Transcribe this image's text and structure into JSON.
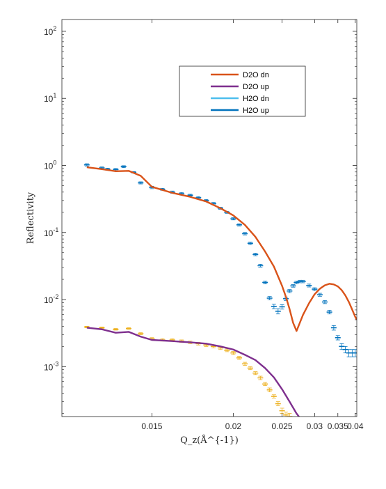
{
  "chart_data": {
    "type": "line",
    "xlabel": "Q_z(Å^{-1})",
    "ylabel": "Reflectivity",
    "x_scale": "reciprocal",
    "y_scale": "log",
    "xlim": [
      0.01175,
      0.0405
    ],
    "ylim": [
      0.00018,
      150
    ],
    "grid": false,
    "legend_position": "upper-center",
    "x_ticks": [
      {
        "value": 0.015,
        "label": "0.015"
      },
      {
        "value": 0.02,
        "label": "0.02"
      },
      {
        "value": 0.025,
        "label": "0.025"
      },
      {
        "value": 0.03,
        "label": "0.03"
      },
      {
        "value": 0.035,
        "label": "0.035"
      },
      {
        "value": 0.04,
        "label": "0.04"
      }
    ],
    "y_ticks": [
      {
        "value": 0.001,
        "base": "10",
        "exp": "-3"
      },
      {
        "value": 0.01,
        "base": "10",
        "exp": "-2"
      },
      {
        "value": 0.1,
        "base": "10",
        "exp": "-1"
      },
      {
        "value": 1,
        "base": "10",
        "exp": "0"
      },
      {
        "value": 10,
        "base": "10",
        "exp": "1"
      },
      {
        "value": 100,
        "base": "10",
        "exp": "2"
      }
    ],
    "series": [
      {
        "name": "D2O dn",
        "style": "line",
        "color": "#D95319",
        "x": [
          0.0125,
          0.013,
          0.0135,
          0.014,
          0.0145,
          0.015,
          0.016,
          0.017,
          0.018,
          0.019,
          0.02,
          0.021,
          0.022,
          0.023,
          0.024,
          0.025,
          0.0255,
          0.026,
          0.0265,
          0.027,
          0.0275,
          0.028,
          0.029,
          0.03,
          0.031,
          0.032,
          0.033,
          0.034,
          0.035,
          0.036,
          0.037,
          0.038,
          0.039,
          0.04,
          0.0405
        ],
        "y": [
          0.94,
          0.88,
          0.82,
          0.83,
          0.7,
          0.48,
          0.39,
          0.34,
          0.29,
          0.23,
          0.18,
          0.13,
          0.086,
          0.052,
          0.031,
          0.016,
          0.011,
          0.0072,
          0.0045,
          0.0034,
          0.0045,
          0.0059,
          0.0088,
          0.012,
          0.0145,
          0.0163,
          0.0172,
          0.0168,
          0.0157,
          0.0138,
          0.0115,
          0.0092,
          0.0071,
          0.0055,
          0.005
        ]
      },
      {
        "name": "D2O up",
        "style": "line",
        "color": "#7E2F8E",
        "x": [
          0.0125,
          0.013,
          0.0135,
          0.014,
          0.0145,
          0.015,
          0.016,
          0.017,
          0.018,
          0.019,
          0.02,
          0.021,
          0.022,
          0.023,
          0.024,
          0.025,
          0.026,
          0.027,
          0.028
        ],
        "y": [
          0.0038,
          0.0036,
          0.0032,
          0.0033,
          0.0028,
          0.0025,
          0.0024,
          0.0023,
          0.0022,
          0.002,
          0.0018,
          0.0015,
          0.00125,
          0.00095,
          0.00069,
          0.00046,
          0.0003,
          0.0002,
          0.00015
        ]
      },
      {
        "name": "H2O dn",
        "style": "errorbar",
        "color": "#4DBEEE",
        "x": [],
        "y": []
      },
      {
        "name": "H2O up",
        "style": "errorbar",
        "color": "#0072BD",
        "x": [
          0.0125,
          0.013,
          0.0132,
          0.0135,
          0.0138,
          0.0142,
          0.0145,
          0.015,
          0.0155,
          0.016,
          0.0165,
          0.017,
          0.0175,
          0.018,
          0.0185,
          0.019,
          0.0195,
          0.02,
          0.0205,
          0.021,
          0.0215,
          0.022,
          0.0225,
          0.023,
          0.0235,
          0.024,
          0.0245,
          0.025,
          0.0255,
          0.026,
          0.0265,
          0.027,
          0.0275,
          0.028,
          0.029,
          0.03,
          0.031,
          0.032,
          0.033,
          0.034,
          0.035,
          0.036,
          0.037,
          0.038,
          0.039,
          0.04
        ],
        "y": [
          1.02,
          0.92,
          0.88,
          0.87,
          0.96,
          0.79,
          0.55,
          0.47,
          0.44,
          0.4,
          0.38,
          0.36,
          0.33,
          0.3,
          0.27,
          0.23,
          0.2,
          0.16,
          0.13,
          0.096,
          0.069,
          0.047,
          0.032,
          0.018,
          0.0105,
          0.0079,
          0.0067,
          0.0078,
          0.0103,
          0.0134,
          0.016,
          0.018,
          0.0186,
          0.0186,
          0.0162,
          0.0143,
          0.0118,
          0.0092,
          0.0065,
          0.0038,
          0.0027,
          0.002,
          0.0018,
          0.0016,
          0.0016,
          0.0016
        ],
        "err": [
          0.04,
          0.03,
          0.03,
          0.03,
          0.03,
          0.02,
          0.02,
          0.02,
          0.015,
          0.015,
          0.015,
          0.012,
          0.012,
          0.01,
          0.01,
          0.008,
          0.007,
          0.006,
          0.005,
          0.004,
          0.003,
          0.002,
          0.0015,
          0.0009,
          0.0006,
          0.0006,
          0.0006,
          0.0006,
          0.0006,
          0.0007,
          0.0007,
          0.0008,
          0.0008,
          0.0008,
          0.0008,
          0.0007,
          0.0006,
          0.0005,
          0.0004,
          0.0003,
          0.0002,
          0.0002,
          0.0002,
          0.0002,
          0.0002,
          0.0002
        ]
      },
      {
        "style": "errorbar",
        "color": "#EDB120",
        "x": [
          0.0125,
          0.013,
          0.0135,
          0.014,
          0.0145,
          0.015,
          0.0155,
          0.016,
          0.0165,
          0.017,
          0.0175,
          0.018,
          0.0185,
          0.019,
          0.0195,
          0.02,
          0.0205,
          0.021,
          0.0215,
          0.022,
          0.0225,
          0.023,
          0.0235,
          0.024,
          0.0245,
          0.025,
          0.0255,
          0.026
        ],
        "y": [
          0.0039,
          0.0038,
          0.0036,
          0.0037,
          0.0031,
          0.0026,
          0.0025,
          0.0025,
          0.0024,
          0.0023,
          0.0022,
          0.0021,
          0.002,
          0.0019,
          0.00175,
          0.0016,
          0.00135,
          0.0011,
          0.00095,
          0.0008,
          0.00068,
          0.00055,
          0.00045,
          0.00036,
          0.00028,
          0.00022,
          0.00019,
          0.00018
        ],
        "err": [
          0.0001,
          0.0001,
          0.0001,
          0.0001,
          0.0001,
          0.0001,
          0.0001,
          0.0001,
          0.0001,
          0.0001,
          0.0001,
          0.0001,
          0.0001,
          0.0001,
          8e-05,
          8e-05,
          7e-05,
          6e-05,
          5e-05,
          4e-05,
          4e-05,
          3e-05,
          3e-05,
          2e-05,
          2e-05,
          2e-05,
          2e-05,
          2e-05
        ]
      }
    ]
  }
}
